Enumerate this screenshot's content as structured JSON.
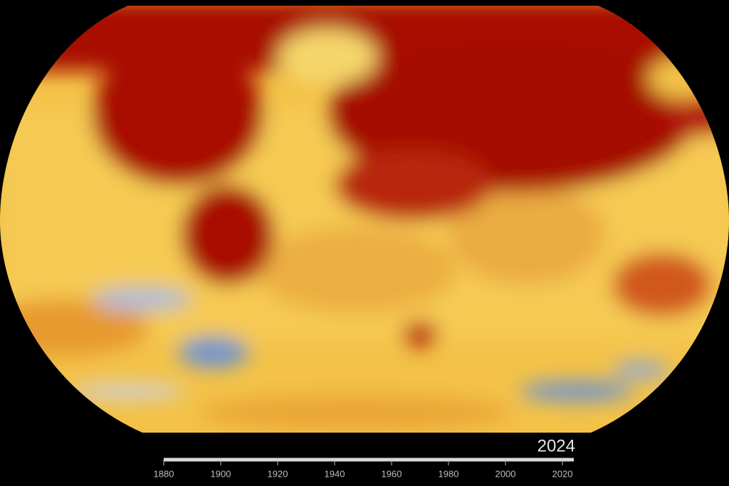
{
  "timeline": {
    "year": 2024,
    "xlim": [
      1880,
      2024
    ],
    "xticks": [
      1880,
      1900,
      1920,
      1940,
      1960,
      1980,
      2000,
      2020
    ]
  }
}
